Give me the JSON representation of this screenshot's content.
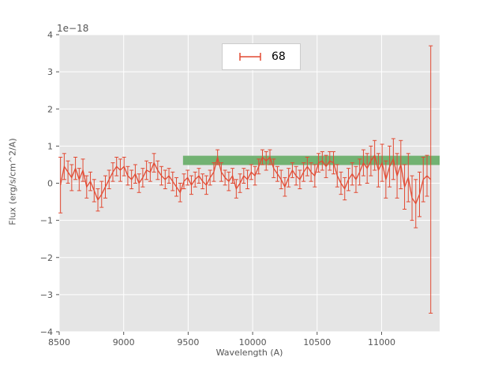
{
  "figure": {
    "background": "#ffffff",
    "axes_background": "#e5e5e5",
    "grid_color": "#ffffff",
    "tick_color": "#555555",
    "label_color": "#555555"
  },
  "chart_data": {
    "type": "line",
    "subtype": "errorbar-spectrum",
    "title": "",
    "xlabel": "Wavelength (A)",
    "ylabel": "Flux (erg/s/cm^2/A)",
    "offset_text": "1e−18",
    "xlim": [
      8500,
      11450
    ],
    "ylim": [
      -4,
      4
    ],
    "grid": true,
    "x_ticks": [
      8500,
      9000,
      9500,
      10000,
      10500,
      11000
    ],
    "x_tick_labels": [
      "8500",
      "9000",
      "9500",
      "10000",
      "10500",
      "11000"
    ],
    "y_ticks": [
      -4,
      -3,
      -2,
      -1,
      0,
      1,
      2,
      3,
      4
    ],
    "y_tick_labels": [
      "−4",
      "−3",
      "−2",
      "−1",
      "0",
      "1",
      "2",
      "3",
      "4"
    ],
    "legend": {
      "label": "68",
      "position": "upper center"
    },
    "band": {
      "x0": 9460,
      "x1": 11450,
      "y0": 0.49,
      "y1": 0.74,
      "color": "#72b272"
    },
    "series": [
      {
        "name": "68",
        "color": "#e24a33",
        "x": [
          8510,
          8539,
          8568,
          8597,
          8626,
          8655,
          8684,
          8713,
          8742,
          8771,
          8800,
          8829,
          8858,
          8887,
          8916,
          8945,
          8974,
          9003,
          9032,
          9061,
          9090,
          9119,
          9148,
          9177,
          9206,
          9235,
          9264,
          9293,
          9322,
          9351,
          9380,
          9409,
          9438,
          9467,
          9496,
          9525,
          9554,
          9583,
          9612,
          9641,
          9670,
          9699,
          9728,
          9757,
          9786,
          9815,
          9844,
          9873,
          9902,
          9931,
          9960,
          9989,
          10018,
          10047,
          10076,
          10105,
          10134,
          10163,
          10192,
          10221,
          10250,
          10279,
          10308,
          10337,
          10366,
          10395,
          10424,
          10453,
          10482,
          10511,
          10540,
          10569,
          10598,
          10627,
          10656,
          10685,
          10714,
          10743,
          10772,
          10801,
          10830,
          10859,
          10888,
          10917,
          10946,
          10975,
          11004,
          11033,
          11062,
          11091,
          11120,
          11149,
          11178,
          11207,
          11236,
          11265,
          11294,
          11323,
          11352,
          11381
        ],
        "y": [
          -0.05,
          0.45,
          0.3,
          0.15,
          0.4,
          0.1,
          0.35,
          -0.1,
          0.05,
          -0.2,
          -0.45,
          -0.3,
          -0.1,
          0.1,
          0.3,
          0.45,
          0.35,
          0.45,
          0.2,
          0.1,
          0.25,
          0.0,
          0.15,
          0.35,
          0.3,
          0.55,
          0.35,
          0.2,
          0.1,
          0.2,
          0.05,
          -0.1,
          -0.25,
          0.05,
          0.15,
          -0.05,
          0.1,
          0.2,
          0.05,
          -0.05,
          0.15,
          0.3,
          0.7,
          0.3,
          0.15,
          0.05,
          0.2,
          -0.15,
          0.0,
          0.2,
          0.1,
          0.3,
          0.2,
          0.45,
          0.7,
          0.6,
          0.7,
          0.4,
          0.25,
          0.1,
          -0.1,
          0.15,
          0.35,
          0.2,
          0.1,
          0.3,
          0.45,
          0.3,
          0.2,
          0.55,
          0.6,
          0.45,
          0.6,
          0.55,
          0.2,
          0.0,
          -0.15,
          0.1,
          0.25,
          0.1,
          0.3,
          0.55,
          0.4,
          0.6,
          0.75,
          0.35,
          0.55,
          0.1,
          0.45,
          0.65,
          0.2,
          0.5,
          -0.1,
          0.15,
          -0.4,
          -0.55,
          -0.3,
          0.1,
          0.2,
          0.1
        ],
        "yerr": [
          0.75,
          0.35,
          0.3,
          0.35,
          0.3,
          0.3,
          0.3,
          0.3,
          0.25,
          0.3,
          0.3,
          0.35,
          0.3,
          0.25,
          0.25,
          0.25,
          0.3,
          0.25,
          0.25,
          0.25,
          0.25,
          0.25,
          0.25,
          0.25,
          0.25,
          0.25,
          0.25,
          0.25,
          0.25,
          0.2,
          0.25,
          0.25,
          0.25,
          0.2,
          0.2,
          0.25,
          0.2,
          0.2,
          0.2,
          0.25,
          0.2,
          0.25,
          0.2,
          0.25,
          0.2,
          0.25,
          0.2,
          0.25,
          0.25,
          0.2,
          0.25,
          0.2,
          0.25,
          0.2,
          0.2,
          0.25,
          0.2,
          0.25,
          0.2,
          0.25,
          0.25,
          0.25,
          0.2,
          0.25,
          0.25,
          0.25,
          0.25,
          0.25,
          0.3,
          0.25,
          0.25,
          0.3,
          0.25,
          0.3,
          0.3,
          0.3,
          0.3,
          0.3,
          0.3,
          0.35,
          0.35,
          0.35,
          0.4,
          0.4,
          0.4,
          0.45,
          0.5,
          0.5,
          0.55,
          0.55,
          0.6,
          0.65,
          0.6,
          0.65,
          0.6,
          0.65,
          0.6,
          0.6,
          0.55,
          3.6
        ]
      }
    ]
  }
}
